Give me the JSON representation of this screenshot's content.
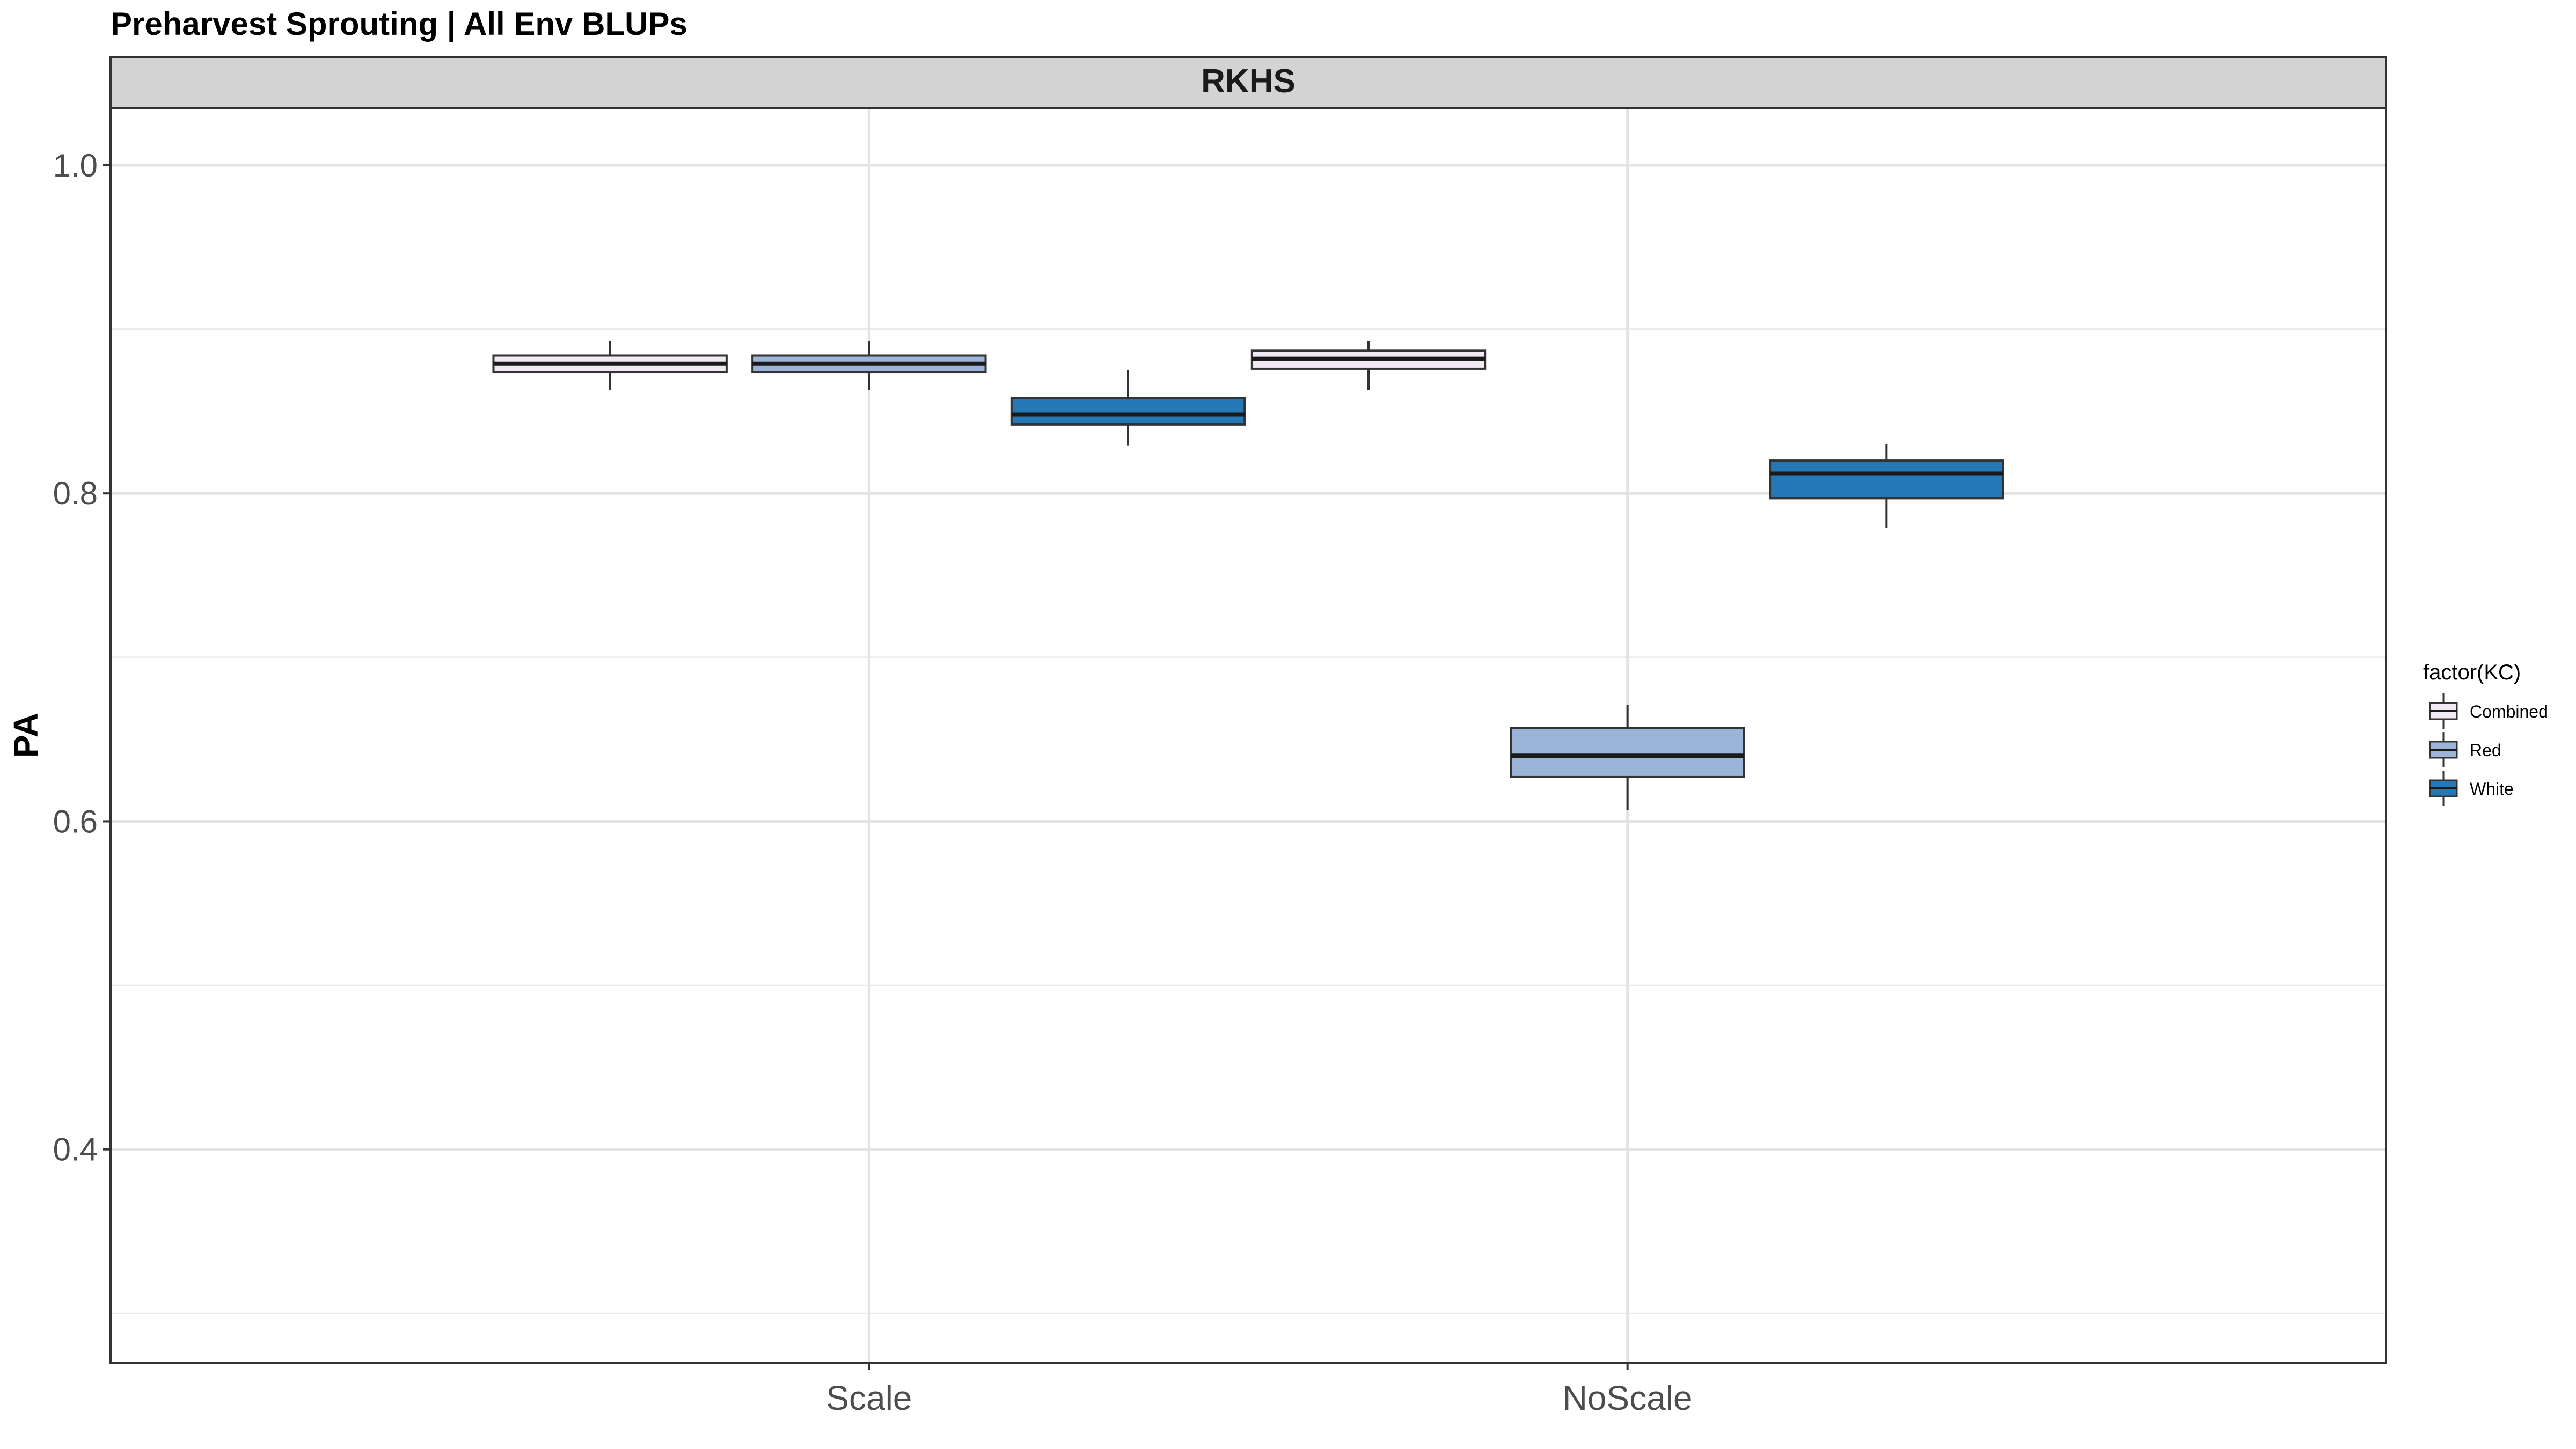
{
  "chart_data": {
    "type": "box",
    "title": "Preharvest Sprouting | All Env BLUPs",
    "facet": "RKHS",
    "xlabel": "",
    "ylabel": "PA",
    "categories": [
      "Scale",
      "NoScale"
    ],
    "ylim": [
      0.27,
      1.035
    ],
    "y_ticks": [
      {
        "value": 0.4,
        "label": "0.4"
      },
      {
        "value": 0.6,
        "label": "0.6"
      },
      {
        "value": 0.8,
        "label": "0.8"
      },
      {
        "value": 1.0,
        "label": "1.0"
      }
    ],
    "y_minor": [
      0.3,
      0.5,
      0.7,
      0.9
    ],
    "grid": true,
    "legend": {
      "title": "factor(KC)",
      "position": "right"
    },
    "series": [
      {
        "name": "Combined",
        "color": "#F1E9F3",
        "boxes": [
          {
            "category": "Scale",
            "min": 0.863,
            "q1": 0.874,
            "median": 0.879,
            "q3": 0.884,
            "max": 0.893
          },
          {
            "category": "NoScale",
            "min": 0.863,
            "q1": 0.876,
            "median": 0.882,
            "q3": 0.887,
            "max": 0.893
          }
        ]
      },
      {
        "name": "Red",
        "color": "#9CB4D8",
        "boxes": [
          {
            "category": "Scale",
            "min": 0.863,
            "q1": 0.874,
            "median": 0.879,
            "q3": 0.884,
            "max": 0.893
          },
          {
            "category": "NoScale",
            "min": 0.607,
            "q1": 0.627,
            "median": 0.64,
            "q3": 0.657,
            "max": 0.671
          }
        ]
      },
      {
        "name": "White",
        "color": "#2478B5",
        "boxes": [
          {
            "category": "Scale",
            "min": 0.829,
            "q1": 0.842,
            "median": 0.848,
            "q3": 0.858,
            "max": 0.875
          },
          {
            "category": "NoScale",
            "min": 0.779,
            "q1": 0.797,
            "median": 0.812,
            "q3": 0.82,
            "max": 0.83
          }
        ]
      }
    ]
  }
}
